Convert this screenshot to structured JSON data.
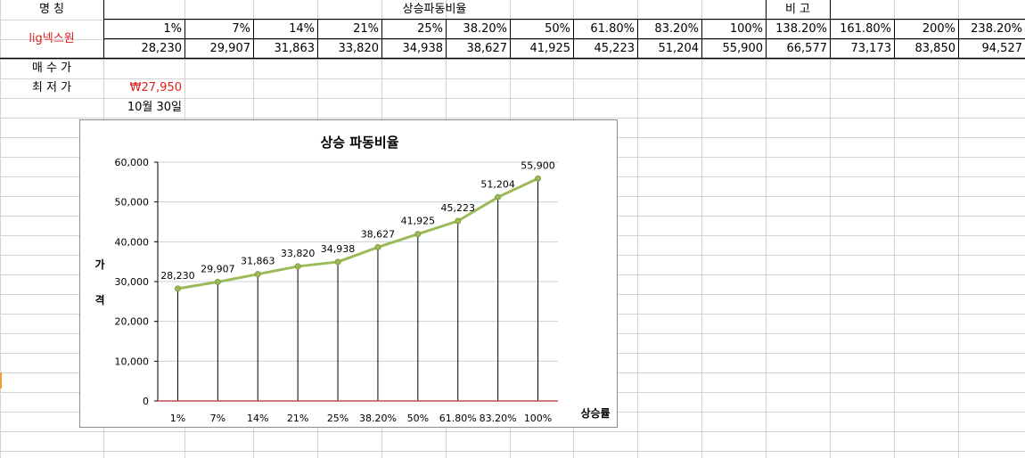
{
  "sheet": {
    "name_header": "명      칭",
    "section_title": "상승파동비율",
    "note_header": "비      고",
    "stock_name": "lig넥스원",
    "ratios": [
      "1%",
      "7%",
      "14%",
      "21%",
      "25%",
      "38.20%",
      "50%",
      "61.80%",
      "83.20%",
      "100%",
      "138.20%",
      "161.80%",
      "200%",
      "238.20%"
    ],
    "prices": [
      "28,230",
      "29,907",
      "31,863",
      "33,820",
      "34,938",
      "38,627",
      "41,925",
      "45,223",
      "51,204",
      "55,900",
      "66,577",
      "73,173",
      "83,850",
      "94,527"
    ],
    "buy_price_label": "매 수 가",
    "lowest_price_label": "최 저 가",
    "lowest_price_value": "₩27,950",
    "date_value": "10월 30일"
  },
  "colors": {
    "line": "#9bbb59",
    "accent_red": "#e0201c",
    "baseline": "#c0504d",
    "grid": "#c8d0dc"
  },
  "chart_data": {
    "type": "line",
    "title": "상승 파동비율",
    "xlabel": "상승률",
    "ylabel": "가격",
    "categories": [
      "1%",
      "7%",
      "14%",
      "21%",
      "25%",
      "38.20%",
      "50%",
      "61.80%",
      "83.20%",
      "100%"
    ],
    "values": [
      28230,
      29907,
      31863,
      33820,
      34938,
      38627,
      41925,
      45223,
      51204,
      55900
    ],
    "value_labels": [
      "28,230",
      "29,907",
      "31,863",
      "33,820",
      "34,938",
      "38,627",
      "41,925",
      "45,223",
      "51,204",
      "55,900"
    ],
    "ylim": [
      0,
      60000
    ],
    "yticks": [
      0,
      10000,
      20000,
      30000,
      40000,
      50000,
      60000
    ],
    "ytick_labels": [
      "0",
      "10,000",
      "20,000",
      "30,000",
      "40,000",
      "50,000",
      "60,000"
    ],
    "drop_lines": true,
    "grid": true
  }
}
